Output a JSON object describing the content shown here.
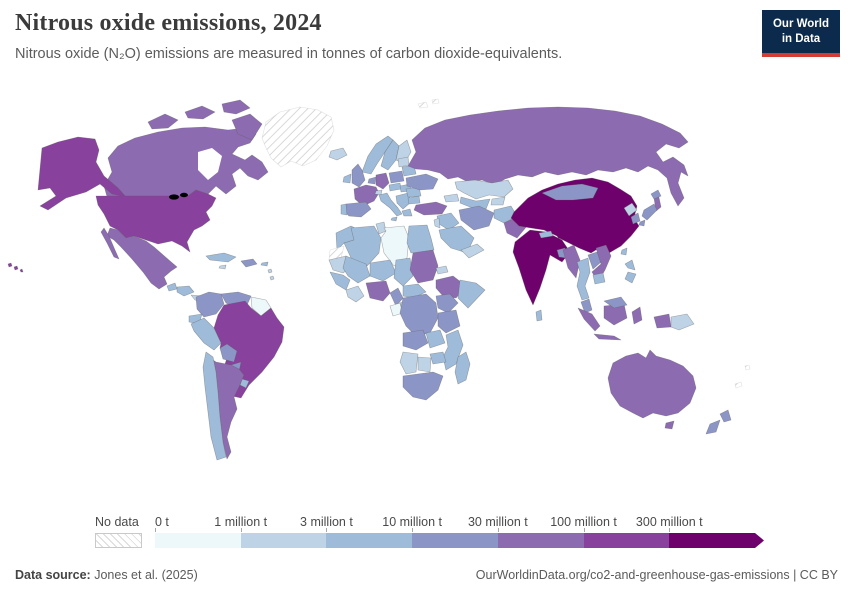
{
  "header": {
    "title": "Nitrous oxide emissions, 2024",
    "subtitle": "Nitrous oxide (N₂O) emissions are measured in tonnes of carbon dioxide-equivalents.",
    "logo": {
      "line1": "Our World",
      "line2": "in Data",
      "bg_color": "#0b2a4c",
      "accent_color": "#d43d33"
    }
  },
  "footer": {
    "source_label": "Data source:",
    "source_value": "Jones et al. (2025)",
    "credit": "OurWorldinData.org/co2-and-greenhouse-gas-emissions | CC BY"
  },
  "chart_data": {
    "type": "heatmap",
    "map_type": "world-choropleth",
    "title": "Nitrous oxide emissions, 2024",
    "unit": "tonnes of carbon dioxide-equivalents",
    "legend": {
      "no_data_label": "No data",
      "ticks": [
        "0 t",
        "1 million t",
        "3 million t",
        "10 million t",
        "30 million t",
        "100 million t",
        "300 million t"
      ],
      "colors": [
        "#edf8fb",
        "#bfd3e6",
        "#9ebcda",
        "#8c96c6",
        "#8c6bb1",
        "#88419d",
        "#6e016b"
      ],
      "bin_meaning": [
        "0–1 million t",
        "1–3 million t",
        "3–10 million t",
        "10–30 million t",
        "30–100 million t",
        "100–300 million t",
        "over 300 million t"
      ],
      "arrow_end": true
    },
    "country_bins": {
      "usa": 5,
      "canada": 4,
      "greenland": -1,
      "mexico": 4,
      "guatemala": 2,
      "honduras-nicaragua": 2,
      "costa-rica-panama": 1,
      "cuba": 2,
      "hispaniola": 3,
      "jamaica": 1,
      "puerto-rico": 2,
      "lesser-antilles": 1,
      "colombia": 3,
      "venezuela": 3,
      "guyanas": 0,
      "ecuador": 2,
      "peru": 2,
      "brazil": 5,
      "bolivia": 3,
      "paraguay": 3,
      "uruguay": 2,
      "argentina": 4,
      "chile": 2,
      "iceland": 1,
      "norway": 2,
      "sweden": 2,
      "finland": 1,
      "denmark": 1,
      "uk": 3,
      "ireland": 2,
      "benelux": 3,
      "germany": 4,
      "poland": 3,
      "belarus": 2,
      "baltics": 1,
      "france": 4,
      "spain": 3,
      "portugal": 2,
      "italy": 2,
      "switzerland": 1,
      "czech-austria": 2,
      "hungary-slovakia": 2,
      "balkans": 2,
      "greece": 2,
      "romania": 2,
      "bulgaria": 2,
      "ukraine": 3,
      "russia": 4,
      "svalbard": -1,
      "kazakhstan": 1,
      "uzbek-turkmen": 2,
      "kyrgyz-tajik": 1,
      "caucasus": 1,
      "turkey": 4,
      "syria-iraq": 2,
      "jordan-israel": 1,
      "saudi-arabia": 2,
      "yemen-oman": 1,
      "iran": 3,
      "afghanistan": 2,
      "pakistan": 4,
      "india": 6,
      "sri-lanka": 2,
      "nepal": 2,
      "bangladesh": 3,
      "china": 6,
      "mongolia": 3,
      "north-korea": 1,
      "south-korea": 3,
      "japan": 3,
      "taiwan": 2,
      "myanmar": 4,
      "thailand": 2,
      "laos": 3,
      "vietnam": 4,
      "cambodia": 2,
      "malaysia": 3,
      "philippines": 2,
      "indonesia": 4,
      "papua-new-guinea": 1,
      "australia": 4,
      "new-zealand": 3,
      "fiji": -1,
      "new-caledonia": -1,
      "morocco": 2,
      "western-sahara": -1,
      "algeria": 2,
      "tunisia": 1,
      "libya": 0,
      "egypt": 2,
      "mauritania": 1,
      "mali": 2,
      "niger": 2,
      "chad": 2,
      "sudan": 4,
      "eritrea": 1,
      "ethiopia": 4,
      "somalia": 2,
      "senegal-guinea": 2,
      "ivory-ghana": 1,
      "nigeria": 4,
      "cameroon": 3,
      "central-african-republic": 2,
      "gabon": 0,
      "congo": 1,
      "drc": 3,
      "uganda-kenya": 3,
      "tanzania": 3,
      "angola": 3,
      "zambia": 2,
      "mozambique": 2,
      "zimbabwe": 2,
      "namibia": 1,
      "botswana": 1,
      "south-africa": 3,
      "madagascar": 2
    }
  }
}
